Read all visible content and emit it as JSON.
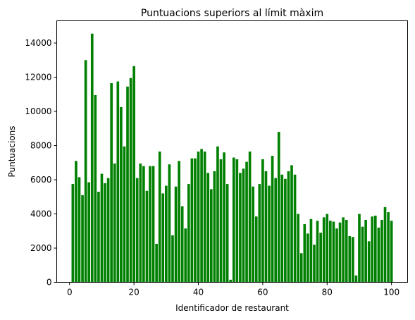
{
  "chart_data": {
    "type": "bar",
    "title": "Puntuacions superiors al límit màxim",
    "xlabel": "Identificador de restaurant",
    "ylabel": "Puntuacions",
    "xlim": [
      -4,
      105
    ],
    "ylim": [
      0,
      15300
    ],
    "xticks": [
      0,
      20,
      40,
      60,
      80,
      100
    ],
    "yticks": [
      0,
      2000,
      4000,
      6000,
      8000,
      10000,
      12000,
      14000
    ],
    "grid": false,
    "legend": "none",
    "bar_color": "#008000",
    "x": [
      1,
      2,
      3,
      4,
      5,
      6,
      7,
      8,
      9,
      10,
      11,
      12,
      13,
      14,
      15,
      16,
      17,
      18,
      19,
      20,
      21,
      22,
      23,
      24,
      25,
      26,
      27,
      28,
      29,
      30,
      31,
      32,
      33,
      34,
      35,
      36,
      37,
      38,
      39,
      40,
      41,
      42,
      43,
      44,
      45,
      46,
      47,
      48,
      49,
      50,
      51,
      52,
      53,
      54,
      55,
      56,
      57,
      58,
      59,
      60,
      61,
      62,
      63,
      64,
      65,
      66,
      67,
      68,
      69,
      70,
      71,
      72,
      73,
      74,
      75,
      76,
      77,
      78,
      79,
      80,
      81,
      82,
      83,
      84,
      85,
      86,
      87,
      88,
      89,
      90,
      91,
      92,
      93,
      94,
      95,
      96,
      97,
      98,
      99,
      100
    ],
    "values": [
      5750,
      7100,
      6150,
      5100,
      13000,
      5850,
      14550,
      10950,
      5300,
      6350,
      5800,
      6100,
      11650,
      6950,
      11750,
      10250,
      7950,
      11450,
      11950,
      12650,
      6100,
      6950,
      6800,
      5350,
      6800,
      6800,
      2250,
      7650,
      5200,
      5650,
      6900,
      2750,
      5600,
      7100,
      4450,
      3150,
      5750,
      7250,
      7250,
      7650,
      7800,
      7650,
      6400,
      5450,
      6500,
      7950,
      7200,
      7600,
      5750,
      150,
      7300,
      7200,
      6400,
      6650,
      7050,
      7650,
      5600,
      3850,
      5750,
      7200,
      6500,
      5650,
      7400,
      6100,
      8800,
      6300,
      6050,
      6500,
      6850,
      6300,
      4000,
      1700,
      3400,
      2850,
      3700,
      2200,
      3600,
      2900,
      3800,
      4000,
      3600,
      3550,
      3150,
      3500,
      3800,
      3650,
      2700,
      2650,
      400,
      4000,
      3250,
      3650,
      2400,
      3850,
      3900,
      3200,
      3650,
      4400,
      4100,
      3600
    ]
  }
}
